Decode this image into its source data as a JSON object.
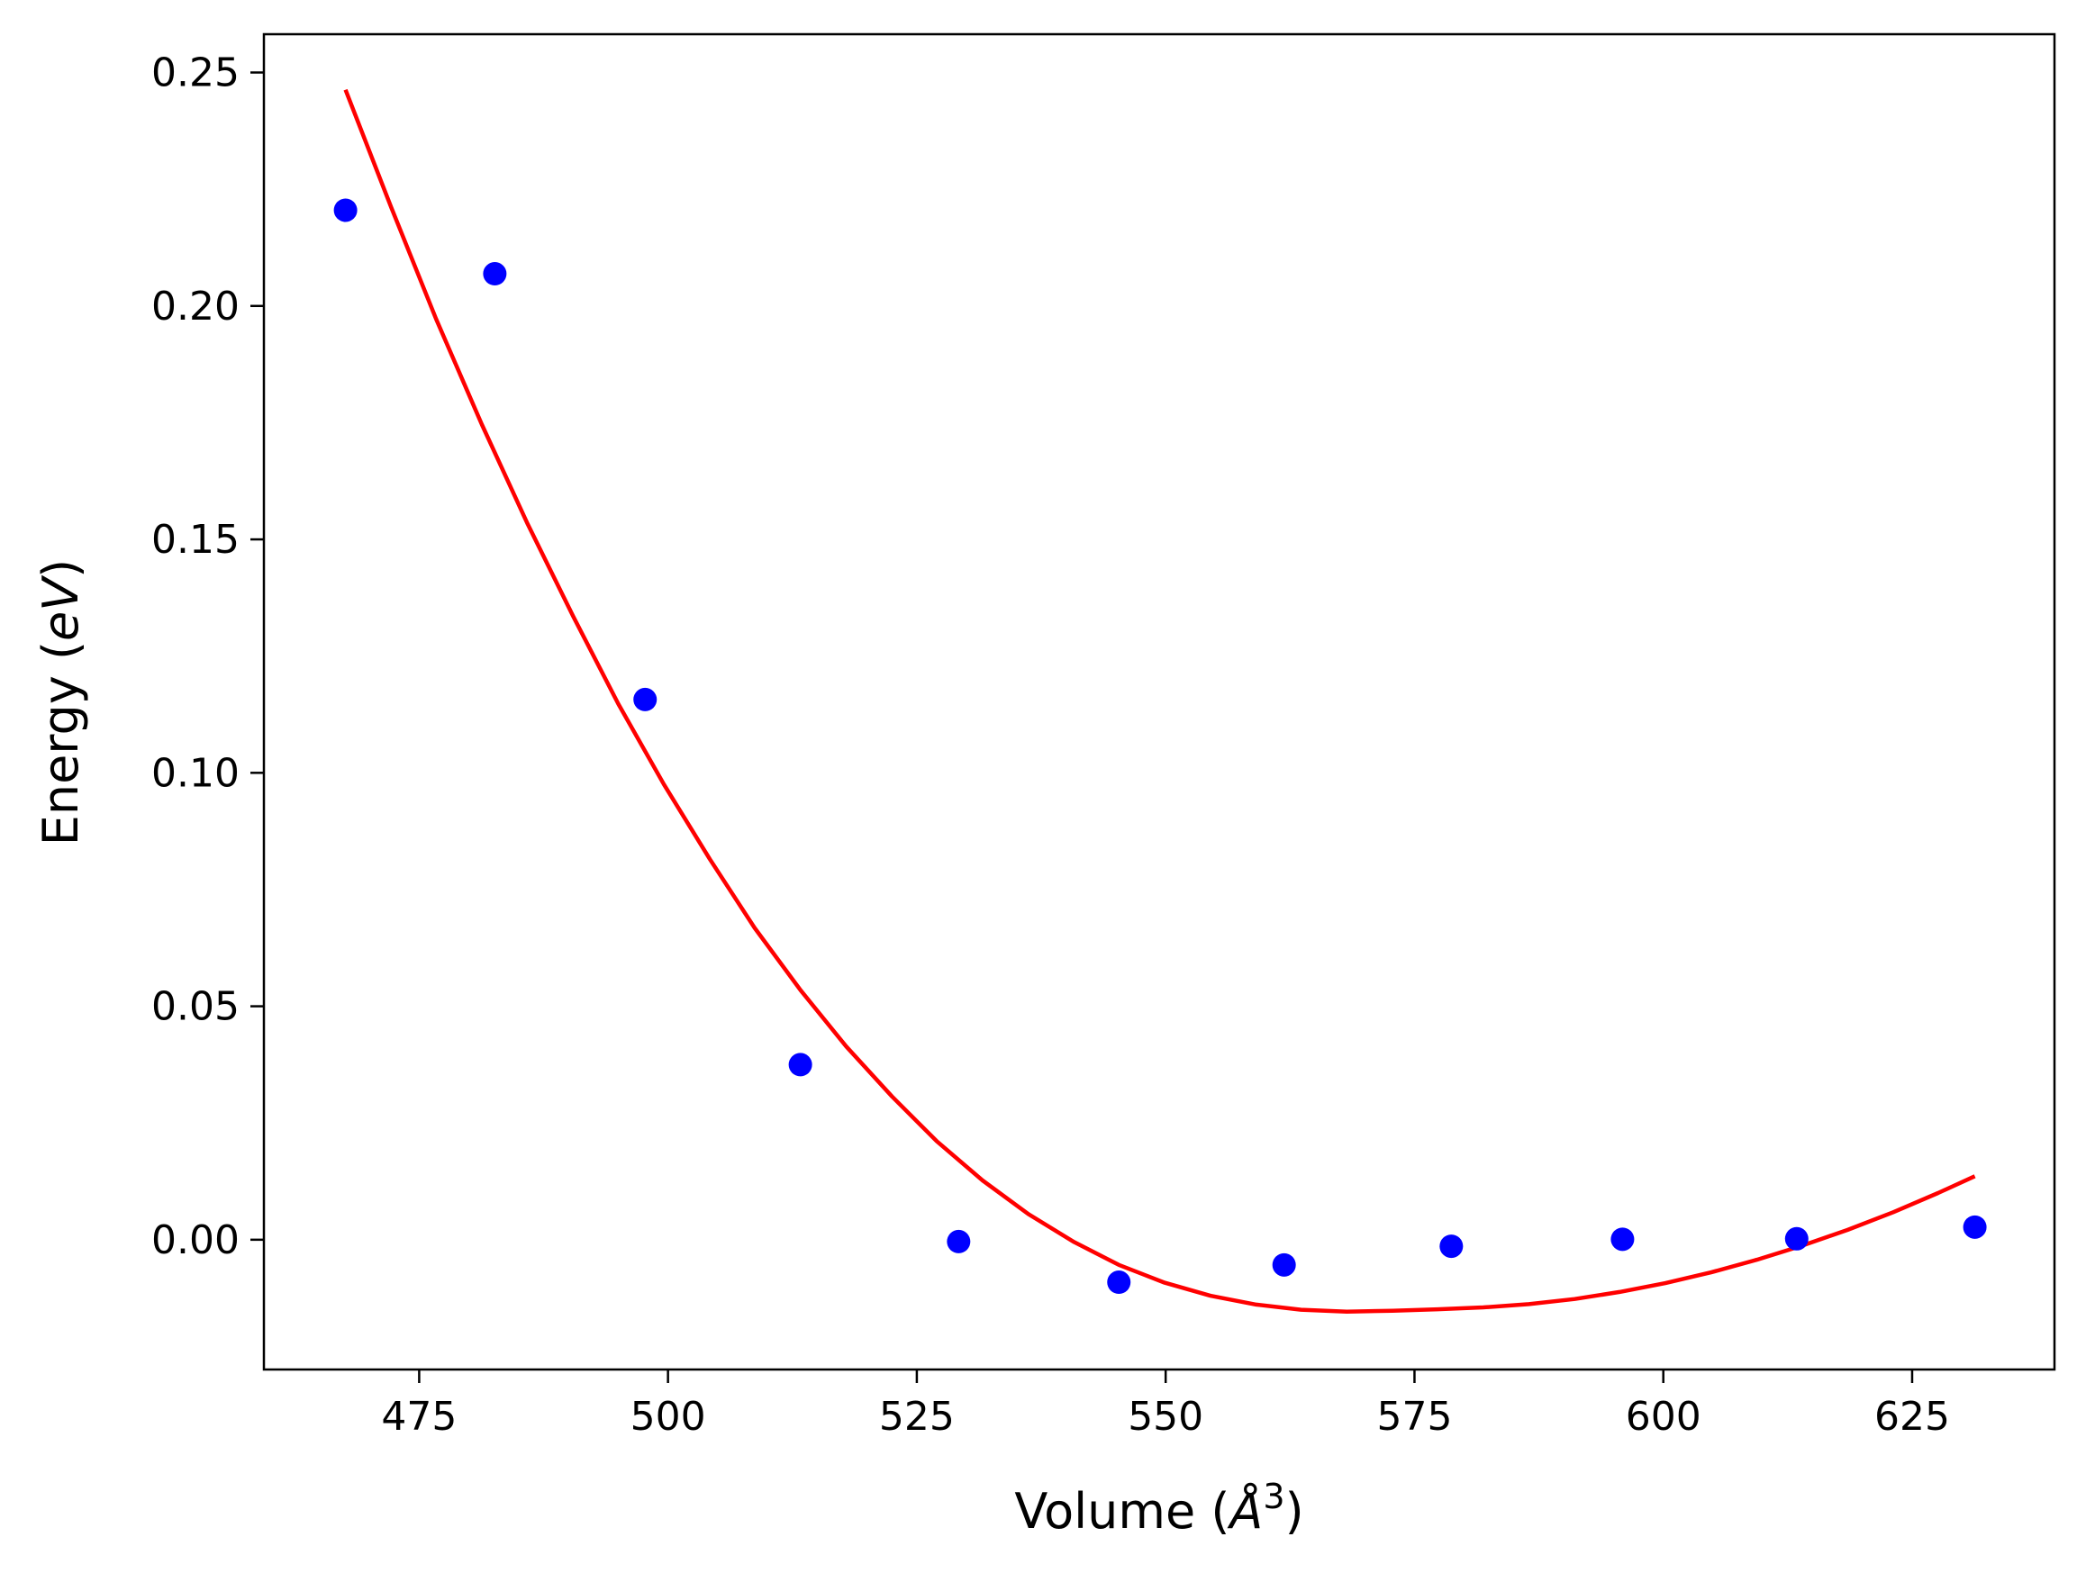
{
  "chart_data": {
    "type": "scatter",
    "xlabel_main": "Volume (",
    "xlabel_unit": "Å",
    "xlabel_sup": "3",
    "xlabel_close": ")",
    "ylabel_main": "Energy (",
    "ylabel_unit": "eV",
    "ylabel_close": ")",
    "xlim": [
      459.4,
      639.3
    ],
    "ylim": [
      -0.0278,
      0.2582
    ],
    "x_ticks": [
      475,
      500,
      525,
      550,
      575,
      600,
      625
    ],
    "x_tick_labels": [
      "475",
      "500",
      "525",
      "550",
      "575",
      "600",
      "625"
    ],
    "y_ticks": [
      0.0,
      0.05,
      0.1,
      0.15,
      0.2,
      0.25
    ],
    "y_tick_labels": [
      "0.00",
      "0.05",
      "0.10",
      "0.15",
      "0.20",
      "0.25"
    ],
    "grid": false,
    "series": [
      {
        "kind": "scatter",
        "color": "#0000ff",
        "x": [
          467.6,
          482.6,
          497.7,
          513.3,
          529.2,
          545.3,
          561.9,
          578.7,
          595.9,
          613.4,
          631.3
        ],
        "y": [
          0.2205,
          0.2069,
          0.1157,
          0.0375,
          -0.0004,
          -0.0091,
          -0.0054,
          -0.0014,
          0.0001,
          0.0002,
          0.0027
        ]
      },
      {
        "kind": "line",
        "color": "#ff0000",
        "x": [
          467.6,
          472.2,
          476.7,
          481.3,
          485.9,
          490.5,
          495.0,
          499.6,
          504.2,
          508.7,
          513.3,
          517.9,
          522.5,
          527.0,
          531.6,
          536.2,
          540.8,
          545.3,
          549.9,
          554.5,
          559.1,
          563.6,
          568.2,
          572.8,
          577.3,
          581.9,
          586.5,
          591.1,
          595.6,
          600.2,
          604.8,
          609.4,
          613.9,
          618.5,
          623.1,
          627.6,
          631.3
        ],
        "y": [
          0.2463,
          0.2211,
          0.1972,
          0.1746,
          0.1533,
          0.1334,
          0.1148,
          0.0975,
          0.0815,
          0.0668,
          0.0535,
          0.0414,
          0.0307,
          0.0211,
          0.0127,
          0.0055,
          -0.0005,
          -0.0054,
          -0.0092,
          -0.012,
          -0.0139,
          -0.015,
          -0.0154,
          -0.0152,
          -0.0149,
          -0.0145,
          -0.0138,
          -0.0127,
          -0.0112,
          -0.0093,
          -0.007,
          -0.0043,
          -0.0013,
          0.0021,
          0.0059,
          0.01,
          0.0136
        ]
      }
    ]
  }
}
